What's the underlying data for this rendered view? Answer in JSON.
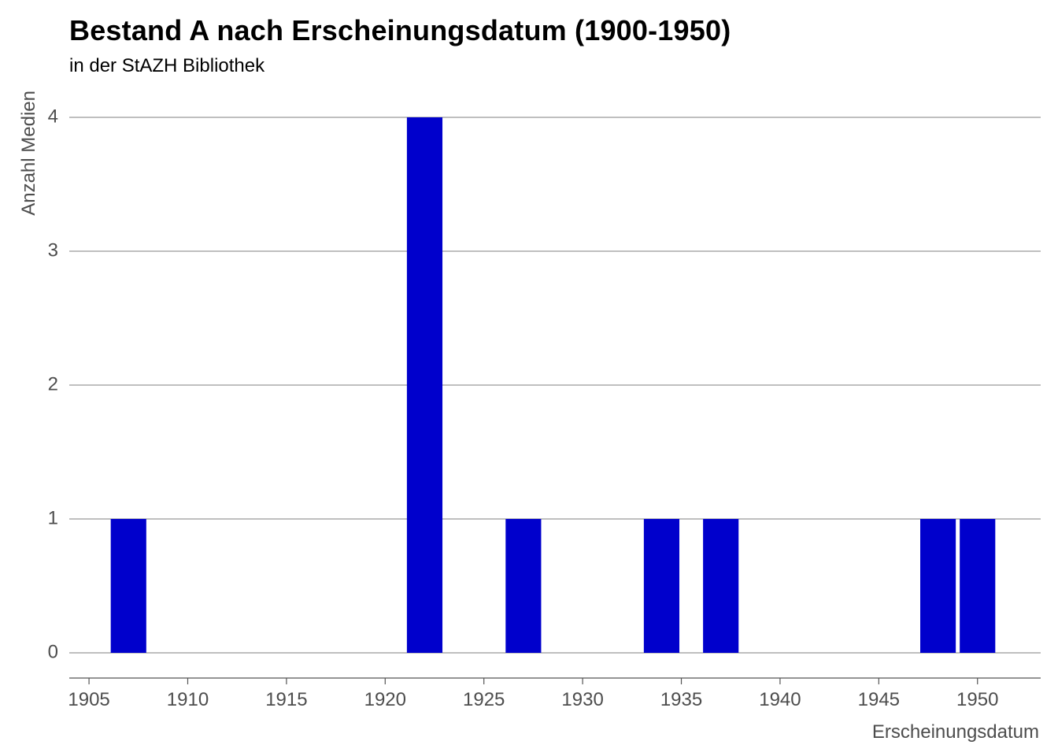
{
  "chart_data": {
    "type": "bar",
    "title": "Bestand A nach Erscheinungsdatum (1900-1950)",
    "subtitle": "in der StAZH Bibliothek",
    "xlabel": "Erscheinungsdatum",
    "ylabel": "Anzahl Medien",
    "x_ticks": [
      "1905",
      "1910",
      "1915",
      "1920",
      "1925",
      "1930",
      "1935",
      "1940",
      "1945",
      "1950"
    ],
    "y_ticks": [
      "0",
      "1",
      "2",
      "3",
      "4"
    ],
    "xlim": [
      1904,
      1953.2
    ],
    "ylim": [
      0,
      4
    ],
    "bin_width": 1.8,
    "bars": [
      {
        "x": 1907,
        "value": 1
      },
      {
        "x": 1922,
        "value": 4
      },
      {
        "x": 1927,
        "value": 1
      },
      {
        "x": 1934,
        "value": 1
      },
      {
        "x": 1937,
        "value": 1
      },
      {
        "x": 1948,
        "value": 1
      },
      {
        "x": 1950,
        "value": 1
      }
    ],
    "grid": "horizontal",
    "legend": "none",
    "colors": {
      "bar": "#0000CC",
      "grid": "#999999",
      "axis": "#555555",
      "text": "#4d4d4d"
    }
  }
}
